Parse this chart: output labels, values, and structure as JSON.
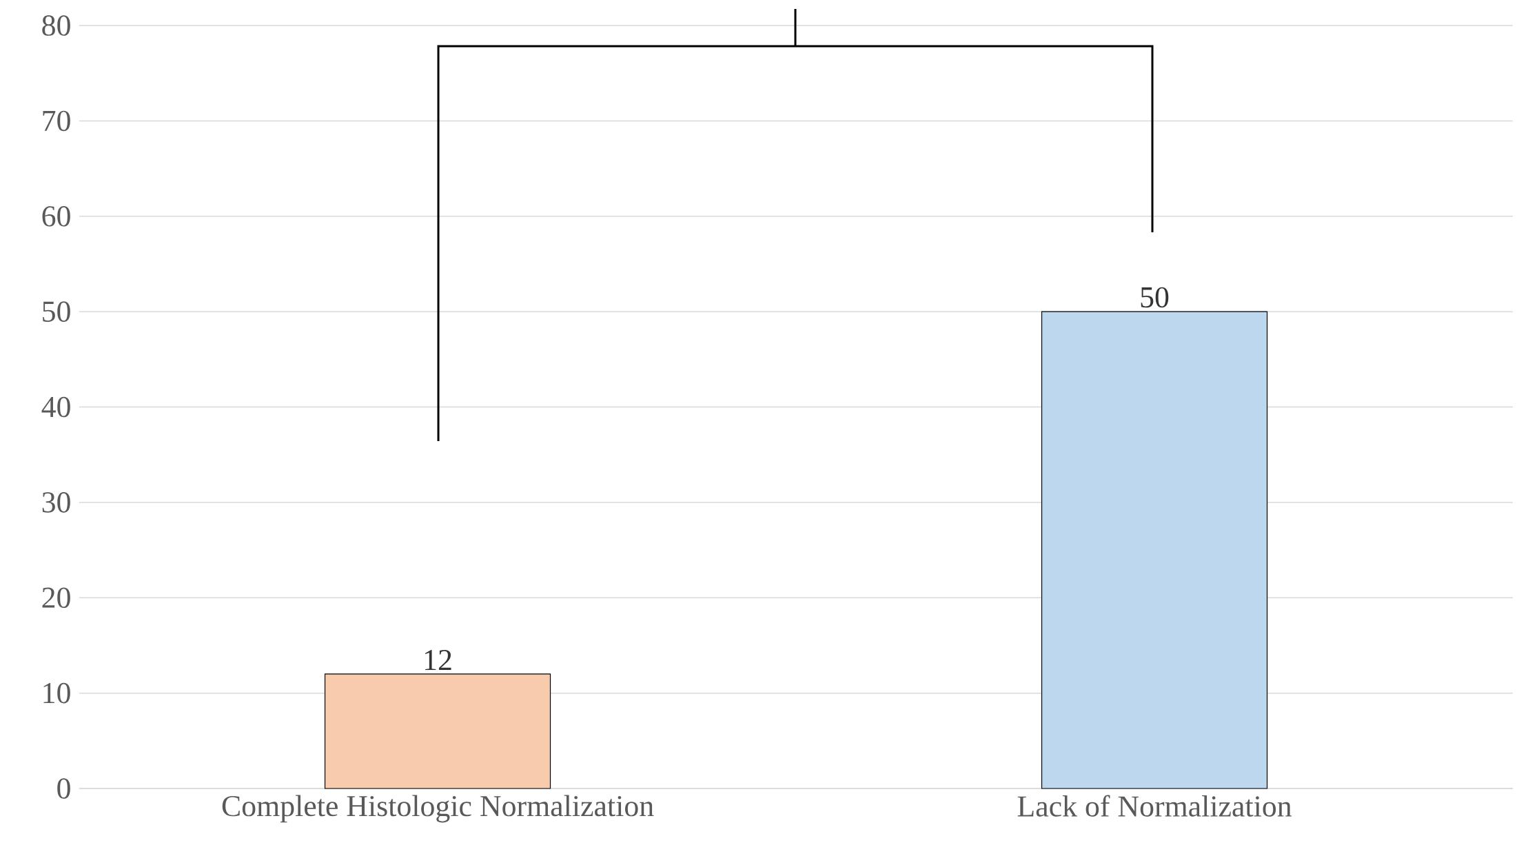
{
  "chart_data": {
    "type": "bar",
    "categories": [
      "Complete Histologic Normalization",
      "Lack of Normalization"
    ],
    "values": [
      12,
      50
    ],
    "colors": [
      "#f8cbad",
      "#bdd7ee"
    ],
    "ylim": [
      0,
      80
    ],
    "yticks": [
      0,
      10,
      20,
      30,
      40,
      50,
      60,
      70,
      80
    ],
    "grid": "y",
    "data_labels": true
  }
}
